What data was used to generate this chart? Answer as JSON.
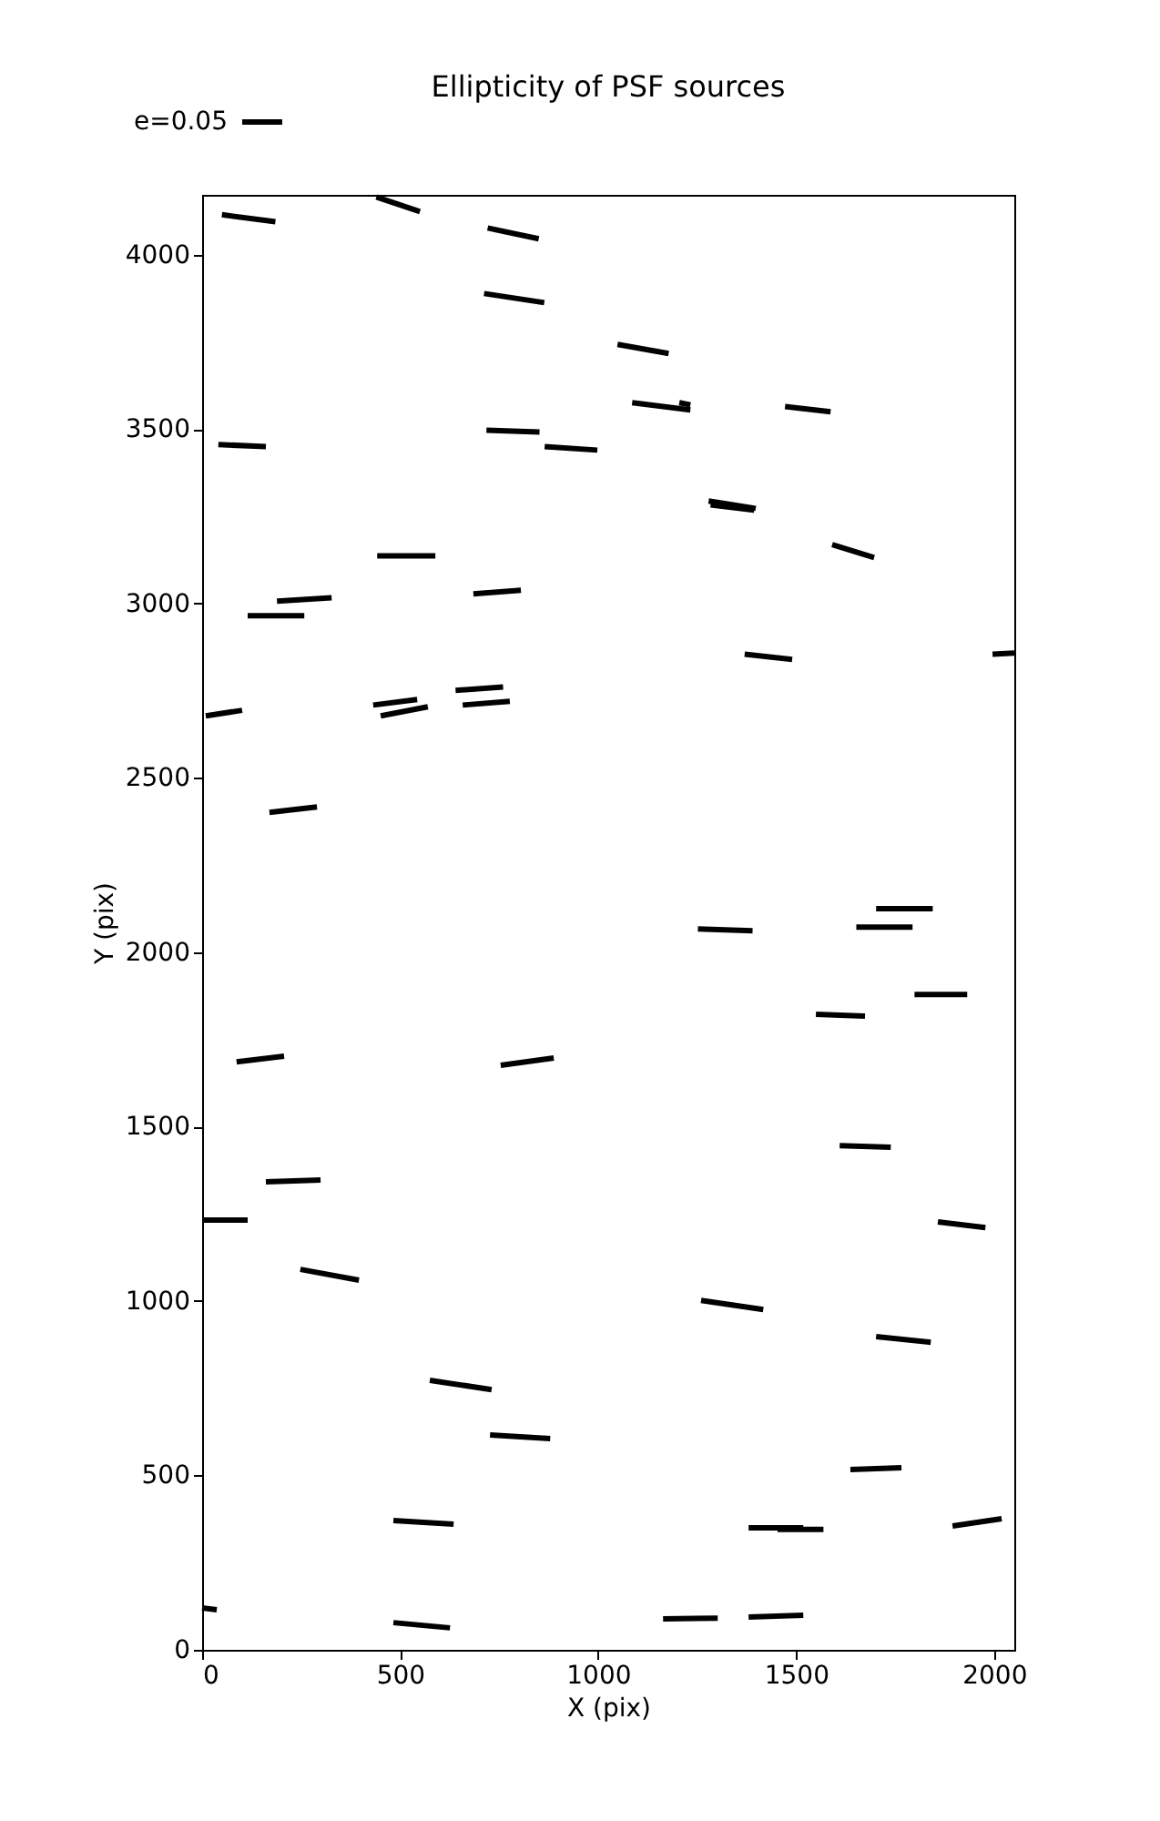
{
  "chart_data": {
    "type": "line",
    "title": "Ellipticity of PSF sources",
    "xlabel": "X (pix)",
    "ylabel": "Y (pix)",
    "xlim": [
      0,
      2051
    ],
    "ylim": [
      0,
      4172
    ],
    "xticks": [
      0,
      500,
      1000,
      1500,
      2000
    ],
    "yticks": [
      0,
      500,
      1000,
      1500,
      2000,
      2500,
      3000,
      3500,
      4000
    ],
    "grid": false,
    "marker": "none",
    "line_style": "solid",
    "annotations": [
      "e=0.05"
    ],
    "series": [
      {
        "color": "#000000",
        "x": [
          50,
          185
        ],
        "values": [
          4115,
          4095
        ]
      },
      {
        "color": "#000000",
        "x": [
          440,
          550
        ],
        "values": [
          4166,
          4124
        ]
      },
      {
        "color": "#000000",
        "x": [
          721,
          850
        ],
        "values": [
          4077,
          4046
        ]
      },
      {
        "color": "#000000",
        "x": [
          712,
          864
        ],
        "values": [
          3889,
          3863
        ]
      },
      {
        "color": "#000000",
        "x": [
          1049,
          1178
        ],
        "values": [
          3743,
          3717
        ]
      },
      {
        "color": "#000000",
        "x": [
          41,
          161
        ],
        "values": [
          3456,
          3450
        ]
      },
      {
        "color": "#000000",
        "x": [
          718,
          852
        ],
        "values": [
          3497,
          3492
        ]
      },
      {
        "color": "#000000",
        "x": [
          865,
          998
        ],
        "values": [
          3450,
          3440
        ]
      },
      {
        "color": "#000000",
        "x": [
          1086,
          1233
        ],
        "values": [
          3576,
          3555
        ]
      },
      {
        "color": "#000000",
        "x": [
          1205,
          1233
        ],
        "values": [
          3576,
          3570
        ]
      },
      {
        "color": "#000000",
        "x": [
          1472,
          1587
        ],
        "values": [
          3565,
          3550
        ]
      },
      {
        "color": "#000000",
        "x": [
          1279,
          1398
        ],
        "values": [
          3294,
          3273
        ]
      },
      {
        "color": "#000000",
        "x": [
          1284,
          1394
        ],
        "values": [
          3283,
          3268
        ]
      },
      {
        "color": "#000000",
        "x": [
          1591,
          1697
        ],
        "values": [
          3169,
          3132
        ]
      },
      {
        "color": "#000000",
        "x": [
          442,
          589
        ],
        "values": [
          3137,
          3137
        ]
      },
      {
        "color": "#000000",
        "x": [
          685,
          805
        ],
        "values": [
          3028,
          3038
        ]
      },
      {
        "color": "#000000",
        "x": [
          189,
          327
        ],
        "values": [
          3007,
          3017
        ]
      },
      {
        "color": "#000000",
        "x": [
          115,
          258
        ],
        "values": [
          2965,
          2965
        ]
      },
      {
        "color": "#000000",
        "x": [
          1370,
          1490
        ],
        "values": [
          2855,
          2840
        ]
      },
      {
        "color": "#000000",
        "x": [
          1996,
          2051
        ],
        "values": [
          2855,
          2858
        ]
      },
      {
        "color": "#000000",
        "x": [
          9,
          101
        ],
        "values": [
          2678,
          2694
        ]
      },
      {
        "color": "#000000",
        "x": [
          451,
          570
        ],
        "values": [
          2678,
          2704
        ]
      },
      {
        "color": "#000000",
        "x": [
          432,
          543
        ],
        "values": [
          2709,
          2725
        ]
      },
      {
        "color": "#000000",
        "x": [
          640,
          760
        ],
        "values": [
          2751,
          2761
        ]
      },
      {
        "color": "#000000",
        "x": [
          658,
          777
        ],
        "values": [
          2709,
          2720
        ]
      },
      {
        "color": "#000000",
        "x": [
          170,
          290
        ],
        "values": [
          2401,
          2417
        ]
      },
      {
        "color": "#000000",
        "x": [
          1252,
          1390
        ],
        "values": [
          2067,
          2062
        ]
      },
      {
        "color": "#000000",
        "x": [
          1702,
          1845
        ],
        "values": [
          2125,
          2125
        ]
      },
      {
        "color": "#000000",
        "x": [
          1652,
          1794
        ],
        "values": [
          2072,
          2072
        ]
      },
      {
        "color": "#000000",
        "x": [
          1799,
          1932
        ],
        "values": [
          1879,
          1879
        ]
      },
      {
        "color": "#000000",
        "x": [
          1550,
          1674
        ],
        "values": [
          1822,
          1817
        ]
      },
      {
        "color": "#000000",
        "x": [
          87,
          207
        ],
        "values": [
          1686,
          1702
        ]
      },
      {
        "color": "#000000",
        "x": [
          754,
          888
        ],
        "values": [
          1676,
          1697
        ]
      },
      {
        "color": "#000000",
        "x": [
          161,
          299
        ],
        "values": [
          1342,
          1347
        ]
      },
      {
        "color": "#000000",
        "x": [
          0,
          115
        ],
        "values": [
          1232,
          1232
        ]
      },
      {
        "color": "#000000",
        "x": [
          1610,
          1739
        ],
        "values": [
          1446,
          1441
        ]
      },
      {
        "color": "#000000",
        "x": [
          1858,
          1978
        ],
        "values": [
          1227,
          1211
        ]
      },
      {
        "color": "#000000",
        "x": [
          248,
          396
        ],
        "values": [
          1091,
          1060
        ]
      },
      {
        "color": "#000000",
        "x": [
          1260,
          1417
        ],
        "values": [
          1002,
          976
        ]
      },
      {
        "color": "#000000",
        "x": [
          1702,
          1840
        ],
        "values": [
          898,
          882
        ]
      },
      {
        "color": "#000000",
        "x": [
          575,
          731
        ],
        "values": [
          773,
          746
        ]
      },
      {
        "color": "#000000",
        "x": [
          727,
          879
        ],
        "values": [
          616,
          606
        ]
      },
      {
        "color": "#000000",
        "x": [
          1637,
          1766
        ],
        "values": [
          517,
          522
        ]
      },
      {
        "color": "#000000",
        "x": [
          483,
          635
        ],
        "values": [
          371,
          360
        ]
      },
      {
        "color": "#000000",
        "x": [
          1895,
          2019
        ],
        "values": [
          355,
          376
        ]
      },
      {
        "color": "#000000",
        "x": [
          1380,
          1518
        ],
        "values": [
          350,
          350
        ]
      },
      {
        "color": "#000000",
        "x": [
          1453,
          1569
        ],
        "values": [
          345,
          345
        ]
      },
      {
        "color": "#000000",
        "x": [
          483,
          626
        ],
        "values": [
          78,
          63
        ]
      },
      {
        "color": "#000000",
        "x": [
          1164,
          1302
        ],
        "values": [
          89,
          91
        ]
      },
      {
        "color": "#000000",
        "x": [
          1380,
          1518
        ],
        "values": [
          94,
          99
        ]
      },
      {
        "color": "#000000",
        "x": [
          0,
          37
        ],
        "values": [
          120,
          115
        ]
      }
    ]
  }
}
